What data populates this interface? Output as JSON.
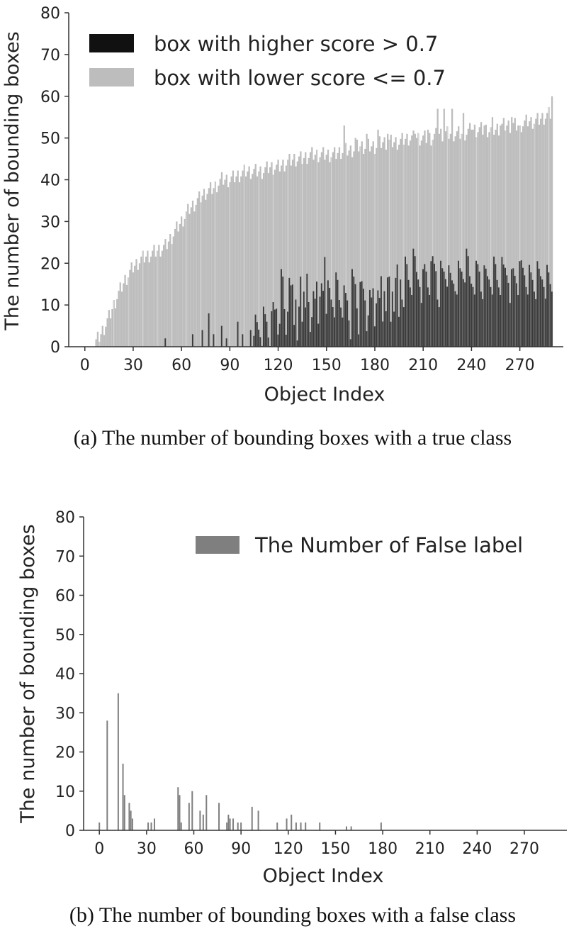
{
  "chart_data": [
    {
      "type": "bar",
      "subtype": "overlaid",
      "caption": "(a) The number of bounding boxes with a true class",
      "xlabel": "Object Index",
      "ylabel": "The number of bounding boxes",
      "xlim": [
        -10,
        297
      ],
      "ylim": [
        0,
        80
      ],
      "xticks": [
        0,
        30,
        60,
        90,
        120,
        150,
        180,
        210,
        240,
        270
      ],
      "yticks": [
        0,
        10,
        20,
        30,
        40,
        50,
        60,
        70,
        80
      ],
      "legend_position": "top-left",
      "grid": false,
      "series": [
        {
          "name": "box with lower score <= 0.7",
          "color": "#bdbdbd",
          "x": [
            0,
            5,
            10,
            15,
            20,
            25,
            30,
            35,
            40,
            45,
            50,
            55,
            60,
            65,
            70,
            75,
            80,
            85,
            90,
            95,
            100,
            105,
            110,
            115,
            120,
            125,
            130,
            135,
            140,
            145,
            150,
            155,
            160,
            165,
            170,
            175,
            180,
            185,
            190,
            195,
            200,
            205,
            210,
            215,
            220,
            225,
            230,
            235,
            240,
            245,
            250,
            255,
            260,
            265,
            270,
            275,
            280,
            285,
            290
          ],
          "values": [
            0,
            0,
            3,
            7,
            12,
            16,
            19,
            21,
            22,
            23,
            24,
            27,
            30,
            33,
            35,
            37,
            38,
            40,
            40,
            41,
            42,
            42,
            42,
            43,
            43,
            44,
            45,
            45,
            46,
            46,
            46,
            46,
            47,
            47,
            48,
            48,
            48,
            49,
            49,
            49,
            50,
            50,
            50,
            50,
            51,
            51,
            51,
            51,
            52,
            52,
            52,
            52,
            53,
            53,
            53,
            54,
            54,
            55,
            56
          ],
          "spikes": [
            [
              219,
              57
            ],
            [
              223,
              57
            ],
            [
              235,
              56
            ],
            [
              253,
              55
            ],
            [
              265,
              55
            ],
            [
              277,
              55
            ],
            [
              290,
              60
            ],
            [
              161,
              53
            ],
            [
              168,
              50
            ],
            [
              175,
              51
            ],
            [
              188,
              51
            ],
            [
              200,
              51
            ],
            [
              213,
              52
            ],
            [
              240,
              52
            ],
            [
              182,
              52
            ],
            [
              205,
              51
            ],
            [
              228,
              57
            ],
            [
              248,
              53
            ],
            [
              258,
              53
            ],
            [
              270,
              53
            ]
          ]
        },
        {
          "name": "box with higher score > 0.7",
          "color": "#3a3a3a",
          "x": [
            50,
            67,
            73,
            77,
            80,
            85,
            88,
            95,
            98,
            103,
            105,
            110,
            113,
            116,
            118,
            121,
            123,
            125,
            128,
            131,
            133,
            136,
            138,
            141,
            143,
            146,
            150,
            152,
            155,
            157,
            160,
            163,
            165,
            168,
            171,
            173,
            176,
            178,
            181,
            183,
            186,
            188,
            191,
            193,
            196,
            198,
            200,
            203,
            205,
            208,
            210,
            212,
            215,
            218,
            220,
            222,
            225,
            228,
            230,
            233,
            235,
            238,
            240,
            243,
            245,
            248,
            250,
            253,
            255,
            258,
            260,
            263,
            265,
            268,
            270,
            273,
            275,
            278,
            280,
            283,
            285,
            288,
            290
          ],
          "values": [
            2,
            3,
            4,
            8,
            3,
            5,
            2,
            6,
            3,
            4,
            2,
            5,
            6,
            4,
            8,
            10,
            15,
            9,
            12,
            14,
            6,
            15,
            13,
            8,
            16,
            12,
            17,
            15,
            14,
            16,
            13,
            12,
            9,
            15,
            11,
            13,
            12,
            10,
            14,
            9,
            16,
            13,
            15,
            12,
            17,
            14,
            18,
            16,
            19,
            17,
            15,
            18,
            16,
            19,
            14,
            17,
            18,
            15,
            16,
            17,
            18,
            19,
            16,
            17,
            18,
            15,
            16,
            17,
            18,
            16,
            17,
            18,
            15,
            17,
            16,
            18,
            17,
            16,
            15,
            16,
            17,
            16,
            15
          ]
        }
      ]
    },
    {
      "type": "bar",
      "caption": "(b) The number of bounding boxes with a false class",
      "xlabel": "Object Index",
      "ylabel": "The number of bounding boxes",
      "xlim": [
        -10,
        297
      ],
      "ylim": [
        0,
        80
      ],
      "xticks": [
        0,
        30,
        60,
        90,
        120,
        150,
        180,
        210,
        240,
        270
      ],
      "yticks": [
        0,
        10,
        20,
        30,
        40,
        50,
        60,
        70,
        80
      ],
      "legend_position": "top-right",
      "grid": false,
      "series": [
        {
          "name": "The Number of False label",
          "color": "#7f7f7f",
          "x": [
            0,
            5,
            12,
            15,
            16,
            19,
            20,
            21,
            31,
            33,
            35,
            50,
            51,
            52,
            57,
            59,
            64,
            66,
            68,
            76,
            81,
            82,
            83,
            85,
            88,
            90,
            97,
            101,
            113,
            119,
            122,
            125,
            128,
            131,
            140,
            157,
            160,
            179
          ],
          "values": [
            2,
            28,
            35,
            17,
            9,
            7,
            5,
            3,
            2,
            2,
            3,
            11,
            9,
            2,
            7,
            10,
            5,
            4,
            9,
            7,
            2,
            4,
            3,
            3,
            2,
            2,
            6,
            5,
            2,
            3,
            4,
            2,
            2,
            2,
            2,
            1,
            1,
            2
          ]
        }
      ]
    }
  ]
}
